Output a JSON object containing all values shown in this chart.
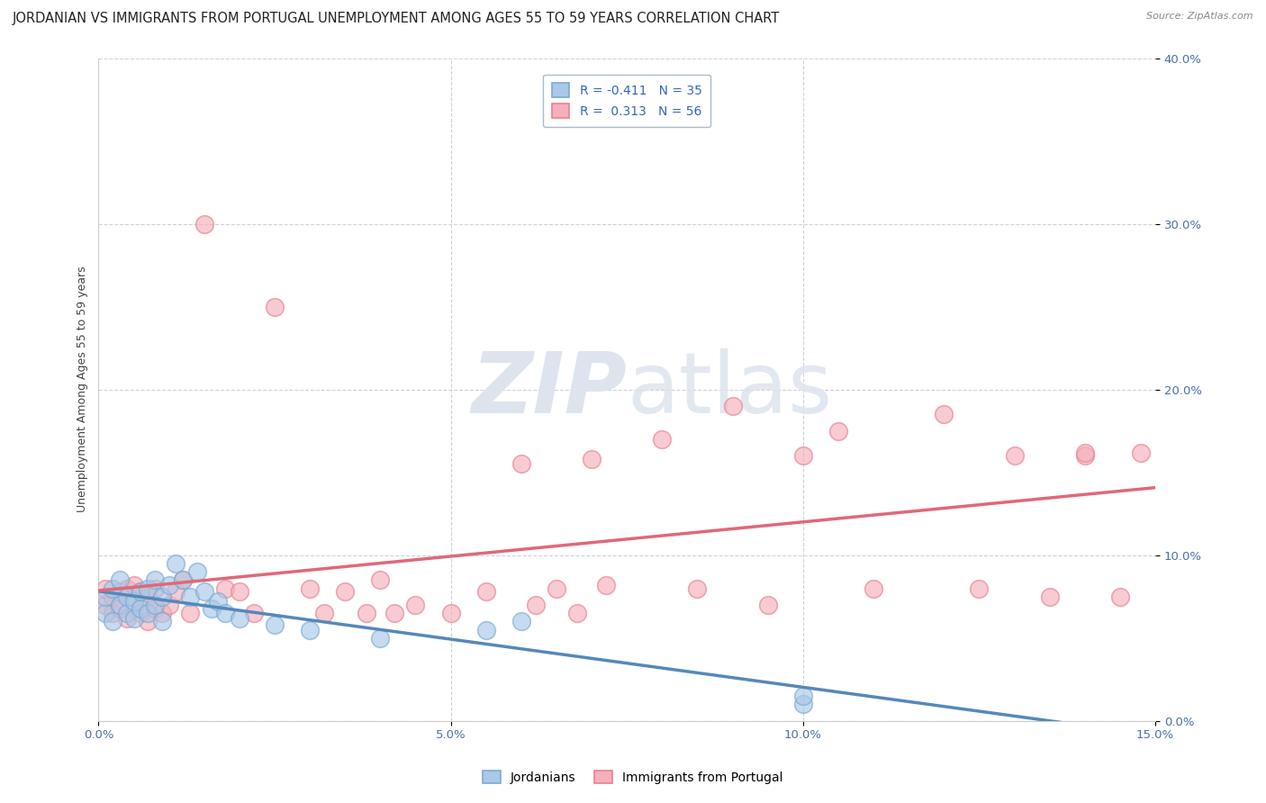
{
  "title": "JORDANIAN VS IMMIGRANTS FROM PORTUGAL UNEMPLOYMENT AMONG AGES 55 TO 59 YEARS CORRELATION CHART",
  "source": "Source: ZipAtlas.com",
  "ylabel": "Unemployment Among Ages 55 to 59 years",
  "xlim": [
    0.0,
    0.15
  ],
  "ylim": [
    0.0,
    0.4
  ],
  "xticks": [
    0.0,
    0.05,
    0.1,
    0.15
  ],
  "xtick_labels": [
    "0.0%",
    "5.0%",
    "10.0%",
    "15.0%"
  ],
  "yticks": [
    0.0,
    0.1,
    0.2,
    0.3,
    0.4
  ],
  "ytick_labels": [
    "0.0%",
    "10.0%",
    "20.0%",
    "30.0%",
    "40.0%"
  ],
  "R_jordan": -0.411,
  "N_jordan": 35,
  "R_portugal": 0.313,
  "N_portugal": 56,
  "blue_face_color": "#aac8e8",
  "pink_face_color": "#f5b0bc",
  "blue_edge_color": "#7aaad0",
  "pink_edge_color": "#e8808e",
  "blue_line_color": "#5588bb",
  "pink_line_color": "#e06878",
  "watermark_color": "#dde4ee",
  "background_color": "#ffffff",
  "grid_color": "#c8cdd8",
  "title_fontsize": 10.5,
  "axis_fontsize": 9,
  "tick_fontsize": 9.5,
  "legend_fontsize": 10,
  "jordan_x": [
    0.001,
    0.001,
    0.002,
    0.002,
    0.003,
    0.003,
    0.004,
    0.004,
    0.005,
    0.005,
    0.006,
    0.006,
    0.007,
    0.007,
    0.008,
    0.008,
    0.009,
    0.009,
    0.01,
    0.011,
    0.012,
    0.013,
    0.014,
    0.015,
    0.016,
    0.017,
    0.018,
    0.02,
    0.025,
    0.03,
    0.04,
    0.055,
    0.06,
    0.1,
    0.1
  ],
  "jordan_y": [
    0.065,
    0.075,
    0.06,
    0.08,
    0.07,
    0.085,
    0.065,
    0.075,
    0.062,
    0.072,
    0.068,
    0.078,
    0.065,
    0.08,
    0.07,
    0.085,
    0.06,
    0.075,
    0.082,
    0.095,
    0.085,
    0.075,
    0.09,
    0.078,
    0.068,
    0.072,
    0.065,
    0.062,
    0.058,
    0.055,
    0.05,
    0.055,
    0.06,
    0.01,
    0.015
  ],
  "portugal_x": [
    0.001,
    0.001,
    0.002,
    0.002,
    0.003,
    0.003,
    0.004,
    0.004,
    0.005,
    0.005,
    0.006,
    0.006,
    0.007,
    0.007,
    0.008,
    0.008,
    0.009,
    0.01,
    0.011,
    0.012,
    0.013,
    0.015,
    0.018,
    0.02,
    0.022,
    0.025,
    0.03,
    0.032,
    0.035,
    0.038,
    0.04,
    0.042,
    0.045,
    0.05,
    0.055,
    0.06,
    0.062,
    0.065,
    0.068,
    0.07,
    0.072,
    0.08,
    0.085,
    0.09,
    0.095,
    0.1,
    0.105,
    0.11,
    0.12,
    0.125,
    0.13,
    0.135,
    0.14,
    0.14,
    0.145,
    0.148
  ],
  "portugal_y": [
    0.07,
    0.08,
    0.065,
    0.075,
    0.068,
    0.078,
    0.062,
    0.08,
    0.07,
    0.082,
    0.065,
    0.078,
    0.06,
    0.075,
    0.068,
    0.08,
    0.065,
    0.07,
    0.078,
    0.085,
    0.065,
    0.3,
    0.08,
    0.078,
    0.065,
    0.25,
    0.08,
    0.065,
    0.078,
    0.065,
    0.085,
    0.065,
    0.07,
    0.065,
    0.078,
    0.155,
    0.07,
    0.08,
    0.065,
    0.158,
    0.082,
    0.17,
    0.08,
    0.19,
    0.07,
    0.16,
    0.175,
    0.08,
    0.185,
    0.08,
    0.16,
    0.075,
    0.16,
    0.162,
    0.075,
    0.162
  ]
}
